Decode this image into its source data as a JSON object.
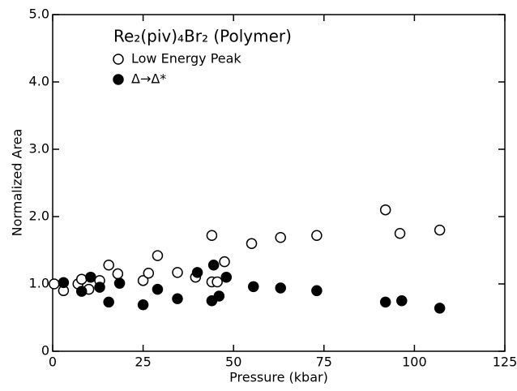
{
  "chart_data": {
    "type": "scatter",
    "title": "Re₂(piv)₄Br₂ (Polymer)",
    "x_label": "Pressure (kbar)",
    "y_label": "Normalized Area",
    "xlim": [
      0,
      125
    ],
    "xticks": [
      0,
      25,
      50,
      75,
      100,
      125
    ],
    "ylim": [
      0,
      5
    ],
    "yticks": [
      0,
      {
        "value": 1,
        "label": "1.0"
      },
      {
        "value": 2,
        "label": "2.0"
      },
      {
        "value": 3,
        "label": "3.0"
      },
      {
        "value": 4,
        "label": "4.0"
      },
      {
        "value": 5,
        "label": "5.0"
      }
    ],
    "legend": "top-left",
    "series": [
      {
        "name": "Low Energy Peak",
        "color": "#000000",
        "marker": "open",
        "x": [
          0.4,
          3,
          7,
          8,
          10,
          13,
          15.5,
          18,
          25,
          26.5,
          29,
          34.5,
          39.5,
          44,
          44,
          45.5,
          47.5,
          55,
          63,
          73,
          92,
          96,
          107
        ],
        "values": [
          1.0,
          0.9,
          1.0,
          1.07,
          0.92,
          1.05,
          1.28,
          1.15,
          1.05,
          1.16,
          1.42,
          1.17,
          1.1,
          1.72,
          1.03,
          1.03,
          1.33,
          1.6,
          1.69,
          1.72,
          2.1,
          1.75,
          1.8
        ]
      },
      {
        "name": "Δ→Δ*",
        "color": "#000000",
        "marker": "filled",
        "x": [
          3,
          8,
          10.5,
          13,
          15.5,
          18.5,
          25,
          29,
          34.5,
          40,
          44.5,
          44,
          46,
          48,
          55.5,
          63,
          73,
          92,
          96.5,
          107
        ],
        "values": [
          1.02,
          0.89,
          1.1,
          0.95,
          0.73,
          1.01,
          0.69,
          0.92,
          0.78,
          1.17,
          1.28,
          0.75,
          0.82,
          1.1,
          0.96,
          0.94,
          0.9,
          0.73,
          0.75,
          0.64
        ]
      }
    ]
  }
}
